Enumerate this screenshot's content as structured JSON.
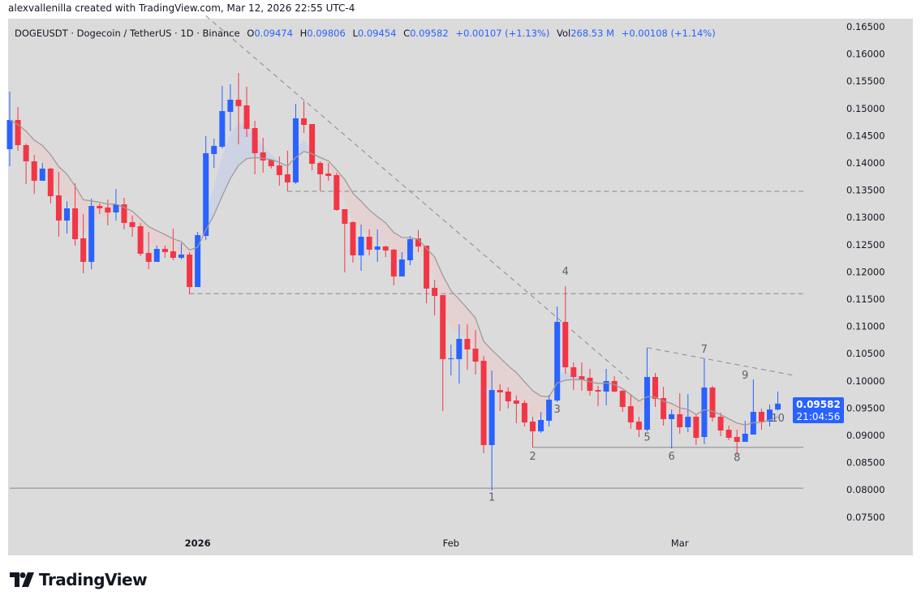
{
  "credit": "alexvallenilla created with TradingView.com, Mar 12, 2026 22:55 UTC-4",
  "legend": {
    "symbol": "DOGEUSDT · Dogecoin / TetherUS · 1D · Binance",
    "o_label": "O",
    "o": "0.09474",
    "h_label": "H",
    "h": "0.09806",
    "l_label": "L",
    "l": "0.09454",
    "c_label": "C",
    "c": "0.09582",
    "change": "+0.00107 (+1.13%)",
    "vol_label": "Vol",
    "vol": "268.53 M",
    "vol_change": "+0.00108 (+1.14%)"
  },
  "price_tag": {
    "price": "0.09582",
    "countdown": "21:04:56"
  },
  "brand": "TradingView",
  "colors": {
    "up": "#2962ff",
    "down": "#f23645",
    "background": "#dbdbdb",
    "ma": "#a09a9a",
    "band_up": "#c9d0e6",
    "band_down": "#e6d0d0",
    "drawing": "#8a8a8a"
  },
  "chart_data": {
    "type": "candlestick",
    "title": "DOGEUSDT · Dogecoin / TetherUS · 1D · Binance",
    "ylim": [
      0.0725,
      0.1665
    ],
    "yticks": [
      "0.16500",
      "0.16000",
      "0.15500",
      "0.15000",
      "0.14500",
      "0.14000",
      "0.13500",
      "0.13000",
      "0.12500",
      "0.12000",
      "0.11500",
      "0.11000",
      "0.10500",
      "0.10000",
      "0.09500",
      "0.09000",
      "0.08500",
      "0.08000",
      "0.07500"
    ],
    "xticks": [
      {
        "label": "2026",
        "date": "2026-01-01",
        "bold": true
      },
      {
        "label": "Feb",
        "date": "2026-02-01",
        "bold": false
      },
      {
        "label": "Mar",
        "date": "2026-03-01",
        "bold": false
      }
    ],
    "candles_fields": [
      "date",
      "open",
      "high",
      "low",
      "close"
    ],
    "candles": [
      [
        "2025-12-09",
        0.14253,
        0.1531,
        0.13941,
        0.14789
      ],
      [
        "2025-12-10",
        0.14789,
        0.15027,
        0.14223,
        0.14327
      ],
      [
        "2025-12-11",
        0.14327,
        0.14357,
        0.13613,
        0.1403
      ],
      [
        "2025-12-12",
        0.1403,
        0.14149,
        0.13435,
        0.13673
      ],
      [
        "2025-12-13",
        0.13673,
        0.14,
        0.13673,
        0.13896
      ],
      [
        "2025-12-14",
        0.13896,
        0.13911,
        0.13256,
        0.1339
      ],
      [
        "2025-12-15",
        0.13405,
        0.13836,
        0.12646,
        0.12943
      ],
      [
        "2025-12-16",
        0.12943,
        0.13301,
        0.12705,
        0.13167
      ],
      [
        "2025-12-17",
        0.13167,
        0.13628,
        0.12482,
        0.12601
      ],
      [
        "2025-12-18",
        0.12616,
        0.13063,
        0.11976,
        0.12185
      ],
      [
        "2025-12-19",
        0.12185,
        0.13345,
        0.12051,
        0.13211
      ],
      [
        "2025-12-20",
        0.13211,
        0.13256,
        0.13063,
        0.13167
      ],
      [
        "2025-12-21",
        0.13182,
        0.1333,
        0.12854,
        0.13092
      ],
      [
        "2025-12-22",
        0.13092,
        0.13524,
        0.12943,
        0.13241
      ],
      [
        "2025-12-23",
        0.13241,
        0.1336,
        0.1278,
        0.12899
      ],
      [
        "2025-12-24",
        0.12914,
        0.13033,
        0.12646,
        0.12824
      ],
      [
        "2025-12-25",
        0.12839,
        0.12899,
        0.12289,
        0.12333
      ],
      [
        "2025-12-26",
        0.12348,
        0.12735,
        0.12051,
        0.12185
      ],
      [
        "2025-12-27",
        0.12185,
        0.12482,
        0.12185,
        0.12423
      ],
      [
        "2025-12-28",
        0.12423,
        0.12482,
        0.12259,
        0.12363
      ],
      [
        "2025-12-29",
        0.12378,
        0.12795,
        0.12214,
        0.12259
      ],
      [
        "2025-12-30",
        0.12259,
        0.12527,
        0.12229,
        0.12318
      ],
      [
        "2025-12-31",
        0.12318,
        0.12363,
        0.11589,
        0.11723
      ],
      [
        "2026-01-01",
        0.11723,
        0.12735,
        0.11723,
        0.12676
      ],
      [
        "2026-01-02",
        0.12661,
        0.14491,
        0.12586,
        0.14179
      ],
      [
        "2026-01-03",
        0.14164,
        0.14446,
        0.13911,
        0.14313
      ],
      [
        "2026-01-04",
        0.14298,
        0.15414,
        0.14268,
        0.14952
      ],
      [
        "2026-01-05",
        0.14938,
        0.15444,
        0.1458,
        0.15161
      ],
      [
        "2026-01-06",
        0.15161,
        0.15652,
        0.14342,
        0.15042
      ],
      [
        "2026-01-07",
        0.15057,
        0.15399,
        0.14476,
        0.14625
      ],
      [
        "2026-01-08",
        0.1464,
        0.14774,
        0.13792,
        0.14179
      ],
      [
        "2026-01-09",
        0.14194,
        0.14461,
        0.13821,
        0.14045
      ],
      [
        "2026-01-10",
        0.1406,
        0.1406,
        0.13896,
        0.13941
      ],
      [
        "2026-01-11",
        0.13955,
        0.14119,
        0.13583,
        0.13777
      ],
      [
        "2026-01-12",
        0.13792,
        0.14223,
        0.13479,
        0.13643
      ],
      [
        "2026-01-13",
        0.13643,
        0.15086,
        0.13613,
        0.14819
      ],
      [
        "2026-01-14",
        0.14819,
        0.15131,
        0.14551,
        0.14699
      ],
      [
        "2026-01-15",
        0.14714,
        0.14714,
        0.13866,
        0.13985
      ],
      [
        "2026-01-16",
        0.14,
        0.1403,
        0.13494,
        0.13792
      ],
      [
        "2026-01-17",
        0.13807,
        0.14,
        0.13673,
        0.13762
      ],
      [
        "2026-01-18",
        0.13777,
        0.13821,
        0.13122,
        0.13137
      ],
      [
        "2026-01-19",
        0.13152,
        0.13152,
        0.11991,
        0.12884
      ],
      [
        "2026-01-20",
        0.12914,
        0.12929,
        0.1217,
        0.12304
      ],
      [
        "2026-01-21",
        0.12304,
        0.12869,
        0.12021,
        0.12646
      ],
      [
        "2026-01-22",
        0.12646,
        0.1278,
        0.12304,
        0.12408
      ],
      [
        "2026-01-23",
        0.12408,
        0.1278,
        0.12185,
        0.12467
      ],
      [
        "2026-01-24",
        0.12467,
        0.12482,
        0.12274,
        0.12393
      ],
      [
        "2026-01-25",
        0.12408,
        0.12423,
        0.11753,
        0.11917
      ],
      [
        "2026-01-26",
        0.11917,
        0.12363,
        0.11917,
        0.12229
      ],
      [
        "2026-01-27",
        0.12214,
        0.12661,
        0.12125,
        0.12601
      ],
      [
        "2026-01-28",
        0.12616,
        0.12765,
        0.12363,
        0.12467
      ],
      [
        "2026-01-29",
        0.12482,
        0.12482,
        0.11426,
        0.11694
      ],
      [
        "2026-01-30",
        0.11708,
        0.11857,
        0.11202,
        0.1156
      ],
      [
        "2026-01-31",
        0.11574,
        0.11574,
        0.09446,
        0.10399
      ],
      [
        "2026-02-01",
        0.10399,
        0.10667,
        0.10101,
        0.10414
      ],
      [
        "2026-02-02",
        0.10399,
        0.11039,
        0.09952,
        0.10771
      ],
      [
        "2026-02-03",
        0.10771,
        0.11039,
        0.10205,
        0.10577
      ],
      [
        "2026-02-04",
        0.10592,
        0.10934,
        0.10116,
        0.10354
      ],
      [
        "2026-02-05",
        0.10369,
        0.10458,
        0.08673,
        0.08821
      ],
      [
        "2026-02-06",
        0.08821,
        0.10191,
        0.07988,
        0.09833
      ],
      [
        "2026-02-07",
        0.09833,
        0.09938,
        0.09446,
        0.09789
      ],
      [
        "2026-02-08",
        0.09804,
        0.09878,
        0.09491,
        0.09625
      ],
      [
        "2026-02-09",
        0.0964,
        0.09729,
        0.09223,
        0.0958
      ],
      [
        "2026-02-10",
        0.09595,
        0.0964,
        0.09164,
        0.09238
      ],
      [
        "2026-02-11",
        0.09253,
        0.09342,
        0.08777,
        0.09074
      ],
      [
        "2026-02-12",
        0.09074,
        0.09432,
        0.09045,
        0.09283
      ],
      [
        "2026-02-13",
        0.09268,
        0.09744,
        0.09164,
        0.09655
      ],
      [
        "2026-02-14",
        0.0964,
        0.11366,
        0.0961,
        0.11083
      ],
      [
        "2026-02-15",
        0.11083,
        0.11738,
        0.10131,
        0.1025
      ],
      [
        "2026-02-16",
        0.1025,
        0.10339,
        0.09833,
        0.10071
      ],
      [
        "2026-02-17",
        0.10086,
        0.10339,
        0.09818,
        0.10027
      ],
      [
        "2026-02-18",
        0.10057,
        0.1022,
        0.09729,
        0.09818
      ],
      [
        "2026-02-19",
        0.09833,
        0.09908,
        0.09536,
        0.09804
      ],
      [
        "2026-02-20",
        0.09804,
        0.1022,
        0.09551,
        0.09997
      ],
      [
        "2026-02-21",
        0.09997,
        0.10086,
        0.0979,
        0.09804
      ],
      [
        "2026-02-22",
        0.09818,
        0.09833,
        0.09432,
        0.09521
      ],
      [
        "2026-02-23",
        0.09536,
        0.09744,
        0.09119,
        0.09238
      ],
      [
        "2026-02-24",
        0.09253,
        0.09342,
        0.0897,
        0.09104
      ],
      [
        "2026-02-25",
        0.09104,
        0.10607,
        0.09074,
        0.10071
      ],
      [
        "2026-02-26",
        0.10071,
        0.10146,
        0.09521,
        0.0967
      ],
      [
        "2026-02-27",
        0.09685,
        0.09893,
        0.09179,
        0.09298
      ],
      [
        "2026-02-28",
        0.09298,
        0.09476,
        0.08762,
        0.09387
      ],
      [
        "2026-03-01",
        0.09387,
        0.09774,
        0.0903,
        0.09149
      ],
      [
        "2026-03-02",
        0.09149,
        0.09759,
        0.0906,
        0.09342
      ],
      [
        "2026-03-03",
        0.09342,
        0.09372,
        0.08821,
        0.08955
      ],
      [
        "2026-03-04",
        0.0897,
        0.10414,
        0.08836,
        0.09878
      ],
      [
        "2026-03-05",
        0.09878,
        0.09908,
        0.09253,
        0.09327
      ],
      [
        "2026-03-06",
        0.09342,
        0.09417,
        0.08985,
        0.09089
      ],
      [
        "2026-03-07",
        0.09104,
        0.09179,
        0.08911,
        0.08955
      ],
      [
        "2026-03-08",
        0.0897,
        0.09104,
        0.08643,
        0.08881
      ],
      [
        "2026-03-09",
        0.08881,
        0.09268,
        0.08881,
        0.0903
      ],
      [
        "2026-03-10",
        0.09015,
        0.10027,
        0.09015,
        0.09432
      ],
      [
        "2026-03-11",
        0.09432,
        0.09491,
        0.09104,
        0.09253
      ],
      [
        "2026-03-12",
        0.09253,
        0.09565,
        0.09164,
        0.09474
      ],
      [
        "2026-03-13",
        0.09474,
        0.09806,
        0.09454,
        0.09582
      ]
    ],
    "horizontal_lines": [
      {
        "price": 0.1348,
        "from": "2026-01-12",
        "style": "dashed"
      },
      {
        "price": 0.116,
        "from": "2025-12-31",
        "style": "dashed"
      },
      {
        "price": 0.0878,
        "from": "2026-02-11",
        "style": "solid"
      },
      {
        "price": 0.0803,
        "from": "2025-12-09",
        "style": "solid"
      }
    ],
    "trend_lines": [
      {
        "from": [
          "2026-01-02",
          0.167
        ],
        "to": [
          "2026-02-23",
          0.1
        ],
        "style": "dashed"
      },
      {
        "from": [
          "2026-02-25",
          0.1061
        ],
        "to": [
          "2026-03-15",
          0.101
        ],
        "style": "dashed"
      }
    ],
    "wave_labels": [
      {
        "text": "1",
        "date": "2026-02-06",
        "price": 0.078
      },
      {
        "text": "2",
        "date": "2026-02-11",
        "price": 0.0855
      },
      {
        "text": "3",
        "date": "2026-02-14",
        "price": 0.0942
      },
      {
        "text": "4",
        "date": "2026-02-15",
        "price": 0.1195
      },
      {
        "text": "5",
        "date": "2026-02-25",
        "price": 0.089
      },
      {
        "text": "6",
        "date": "2026-02-28",
        "price": 0.0855
      },
      {
        "text": "7",
        "date": "2026-03-04",
        "price": 0.1052
      },
      {
        "text": "8",
        "date": "2026-03-08",
        "price": 0.0853
      },
      {
        "text": "9",
        "date": "2026-03-09",
        "price": 0.1004
      },
      {
        "text": "10",
        "date": "2026-03-13",
        "price": 0.0925
      }
    ]
  }
}
